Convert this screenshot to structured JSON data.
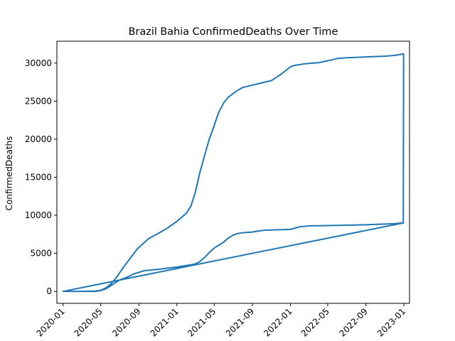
{
  "chart_data": {
    "type": "line",
    "title": "Brazil Bahia ConfirmedDeaths Over Time",
    "xlabel": "",
    "ylabel": "ConfirmedDeaths",
    "xlim": [
      "2019-12-12",
      "2023-01-19"
    ],
    "ylim": [
      -1570,
      32870
    ],
    "grid": false,
    "line_color": "#1f77b4",
    "x_ticks": [
      "2020-01",
      "2020-05",
      "2020-09",
      "2021-01",
      "2021-05",
      "2021-09",
      "2022-01",
      "2022-05",
      "2022-09",
      "2023-01"
    ],
    "y_ticks": [
      0,
      5000,
      10000,
      15000,
      20000,
      25000,
      30000
    ],
    "series": [
      {
        "x": [
          "2020-01-01",
          "2020-03-01",
          "2020-04-15",
          "2020-05-01",
          "2020-05-15",
          "2020-06-01",
          "2020-06-20",
          "2020-07-10",
          "2020-08-01",
          "2020-08-25",
          "2020-09-01",
          "2020-09-15",
          "2020-10-01",
          "2020-11-01",
          "2020-12-01",
          "2021-01-01",
          "2021-02-01",
          "2021-02-15",
          "2021-03-01",
          "2021-03-15",
          "2021-04-01",
          "2021-04-15",
          "2021-05-01",
          "2021-05-15",
          "2021-06-01",
          "2021-06-15",
          "2021-07-01",
          "2021-07-15",
          "2021-08-01",
          "2021-09-01",
          "2021-10-01",
          "2021-11-01",
          "2021-12-01",
          "2022-01-01",
          "2022-01-15",
          "2022-02-01",
          "2022-02-15",
          "2022-03-01",
          "2022-04-01",
          "2022-05-01",
          "2022-06-01",
          "2022-07-01",
          "2022-08-01",
          "2022-09-01",
          "2022-10-01",
          "2022-11-01",
          "2022-12-01",
          "2022-12-31",
          "2022-12-30",
          "2022-12-01",
          "2022-11-01",
          "2022-10-01",
          "2022-09-01",
          "2022-07-01",
          "2022-05-01",
          "2022-03-01",
          "2022-02-15",
          "2022-02-01",
          "2022-01-15",
          "2022-01-01",
          "2021-10-15",
          "2021-10-01",
          "2021-09-01",
          "2021-08-01",
          "2021-07-15",
          "2021-07-01",
          "2021-06-15",
          "2021-06-01",
          "2021-05-01",
          "2021-04-15",
          "2021-04-01",
          "2021-03-15",
          "2021-03-01",
          "2021-02-01",
          "2021-01-01",
          "2020-11-01",
          "2020-09-15",
          "2020-09-01",
          "2020-08-15",
          "2020-08-01",
          "2020-07-15",
          "2020-07-01",
          "2020-06-15",
          "2020-06-01",
          "2020-05-15",
          "2020-05-01",
          "2020-04-15",
          "2020-03-01",
          "2020-01-01",
          "2022-12-31"
        ],
        "y": [
          0,
          0,
          50,
          150,
          400,
          900,
          1800,
          3000,
          4200,
          5500,
          5800,
          6300,
          6900,
          7600,
          8300,
          9200,
          10300,
          11200,
          13000,
          15500,
          18000,
          20000,
          21800,
          23500,
          24800,
          25500,
          26000,
          26400,
          26800,
          27100,
          27400,
          27700,
          28500,
          29500,
          29700,
          29800,
          29900,
          29950,
          30050,
          30300,
          30600,
          30700,
          30750,
          30800,
          30850,
          30900,
          31000,
          31200,
          9000,
          8900,
          8850,
          8800,
          8750,
          8700,
          8650,
          8600,
          8550,
          8500,
          8300,
          8150,
          8050,
          8000,
          7800,
          7700,
          7600,
          7400,
          7000,
          6500,
          5700,
          5100,
          4500,
          3900,
          3600,
          3400,
          3200,
          2900,
          2700,
          2500,
          2300,
          2000,
          1700,
          1500,
          1100,
          700,
          300,
          100,
          0,
          0,
          0,
          9000
        ]
      }
    ]
  }
}
